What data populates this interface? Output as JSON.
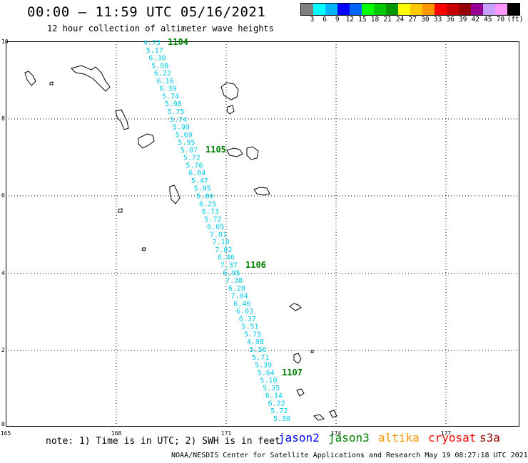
{
  "header": {
    "title": "00:00 – 11:59 UTC 05/16/2021",
    "subtitle": "12 hour collection of altimeter wave heights"
  },
  "scale": {
    "colors": [
      "#808080",
      "#00ffff",
      "#00b4ff",
      "#0000ff",
      "#0064ff",
      "#00ff00",
      "#00c800",
      "#009600",
      "#ffff00",
      "#ffc800",
      "#ff9600",
      "#ff0000",
      "#c80000",
      "#960000",
      "#960096",
      "#c8a0ff",
      "#ff96ff",
      "#000000"
    ],
    "labels": [
      "3",
      "6",
      "9",
      "12",
      "15",
      "18",
      "21",
      "24",
      "27",
      "30",
      "33",
      "36",
      "39",
      "42",
      "45",
      "70",
      "(ft)"
    ]
  },
  "map": {
    "y_ticks": [
      "10",
      "8",
      "6",
      "4",
      "2",
      "0"
    ],
    "x_ticks": [
      "165",
      "168",
      "171",
      "174",
      "177"
    ],
    "time_labels": [
      "1104",
      "1105",
      "1106",
      "1107"
    ],
    "time_label_color": "#008000",
    "track_color": "#00c8e6",
    "swh_values": [
      "4.73",
      "5.17",
      "6.30",
      "5.98",
      "6.22",
      "6.16",
      "6.39",
      "5.74",
      "5.98",
      "5.75",
      "5.74",
      "5.99",
      "5.69",
      "5.95",
      "5.87",
      "5.72",
      "5.76",
      "6.04",
      "5.47",
      "5.95",
      "5.86",
      "6.25",
      "6.73",
      "5.72",
      "6.05",
      "7.01",
      "7.10",
      "7.02",
      "6.46",
      "7.37",
      "6.95",
      "7.38",
      "6.28",
      "7.04",
      "6.46",
      "6.03",
      "6.37",
      "5.51",
      "5.75",
      "4.98",
      "5.56",
      "5.71",
      "5.39",
      "5.64",
      "5.10",
      "5.35",
      "6.14",
      "6.22",
      "5.72",
      "5.30"
    ]
  },
  "footer": {
    "note": "note: 1) Time is in UTC; 2) SWH is in feet",
    "satellites": [
      {
        "name": "jason2",
        "color": "#0000ff"
      },
      {
        "name": "jason3",
        "color": "#008000"
      },
      {
        "name": "altika",
        "color": "#ff9600"
      },
      {
        "name": "cryosat",
        "color": "#ff0000"
      },
      {
        "name": "s3a",
        "color": "#960000"
      }
    ],
    "credit": "NOAA/NESDIS Center for Satellite Applications and Research    May 19 08:27:18 UTC 2021"
  }
}
